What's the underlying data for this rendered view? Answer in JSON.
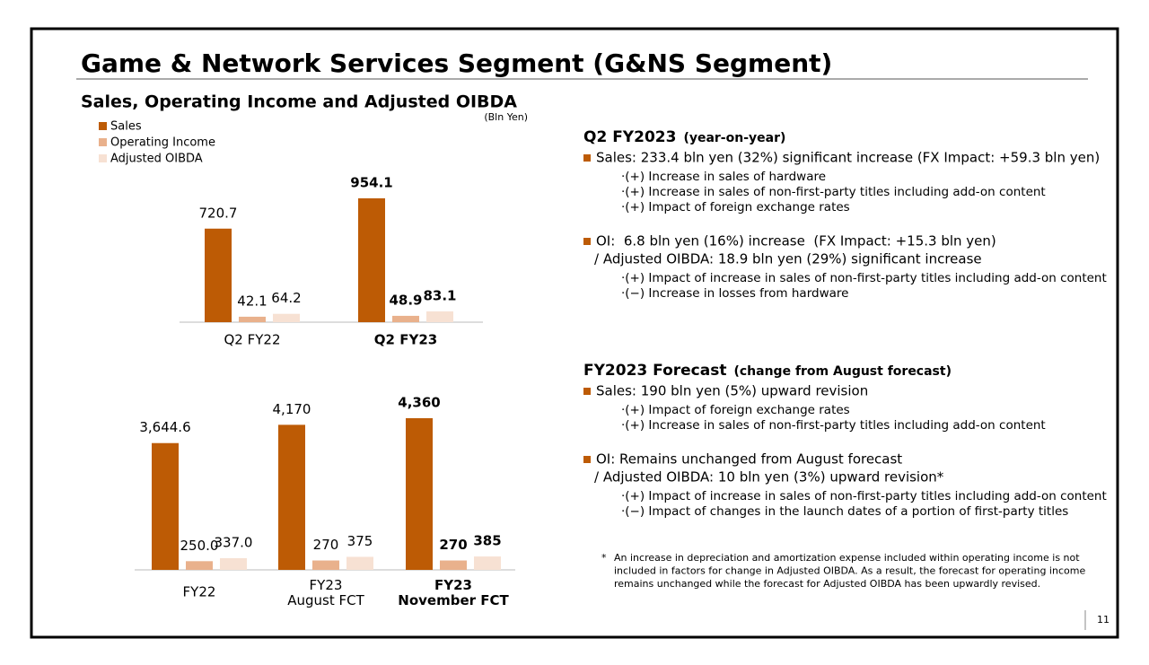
{
  "title": "Game & Network Services Segment (G&NS Segment)",
  "subtitle": "Sales, Operating Income and Adjusted OIBDA",
  "chart_data": [
    {
      "type": "bar",
      "unit": "(Bln Yen)",
      "categories": [
        "Q2 FY22",
        "Q2 FY23"
      ],
      "series": [
        {
          "name": "Sales",
          "color": "#bd5b05",
          "values": [
            720.7,
            954.1
          ]
        },
        {
          "name": "Operating Income",
          "color": "#e9b18c",
          "values": [
            42.1,
            48.9
          ]
        },
        {
          "name": "Adjusted OIBDA",
          "color": "#f7e1d3",
          "values": [
            64.2,
            83.1
          ]
        }
      ]
    },
    {
      "type": "bar",
      "categories": [
        "FY22",
        "FY23\nAugust FCT",
        "FY23\nNovember FCT"
      ],
      "series": [
        {
          "color": "#bd5b05",
          "values": [
            3644.6,
            4170,
            4360
          ],
          "value_labels": [
            "3,644.6",
            "4,170",
            "4,360"
          ]
        },
        {
          "color": "#e9b18c",
          "values": [
            250,
            270,
            270
          ],
          "value_labels": [
            "250.0",
            "270",
            "270"
          ]
        },
        {
          "color": "#f7e1d3",
          "values": [
            337,
            375,
            385
          ],
          "value_labels": [
            "337.0",
            "375",
            "385"
          ]
        }
      ]
    }
  ],
  "text_sections": [
    {
      "heading": "Q2 FY2023",
      "heading_note": "(year-on-year)",
      "items": [
        {
          "lines": [
            "Sales: 233.4 bln yen (32%) significant increase (FX Impact: +59.3 bln yen)"
          ],
          "points": [
            "·(+) Increase in sales of hardware",
            "·(+) Increase in sales of non-first-party titles including add-on content",
            "·(+) Impact of foreign exchange rates"
          ]
        },
        {
          "lines": [
            "OI:  6.8 bln yen (16%) increase  (FX Impact: +15.3 bln yen)",
            "/ Adjusted OIBDA: 18.9 bln yen (29%) significant increase"
          ],
          "points": [
            "·(+) Impact of increase in sales of non-first-party titles including add-on content",
            "·(−) Increase in losses from hardware"
          ]
        }
      ]
    },
    {
      "heading": "FY2023 Forecast",
      "heading_note": "(change from August forecast)",
      "items": [
        {
          "lines": [
            "Sales: 190 bln yen (5%) upward revision"
          ],
          "points": [
            "·(+) Impact of foreign exchange rates",
            "·(+) Increase in sales of non-first-party titles including add-on content"
          ]
        },
        {
          "lines": [
            "OI: Remains unchanged from August forecast",
            "/ Adjusted OIBDA: 10 bln yen (3%) upward revision*"
          ],
          "points": [
            "·(+) Impact of increase in sales of non-first-party titles including add-on content",
            "·(−) Impact of changes in the launch dates of a portion of first-party titles"
          ]
        }
      ]
    }
  ],
  "footnote_mark": "*",
  "footnote": [
    "An increase in depreciation and amortization expense included within operating income is not",
    "included in factors for change in Adjusted OIBDA. As a result, the forecast for operating income",
    "remains unchanged while the forecast for Adjusted OIBDA has been upwardly revised."
  ],
  "page_number": "11"
}
